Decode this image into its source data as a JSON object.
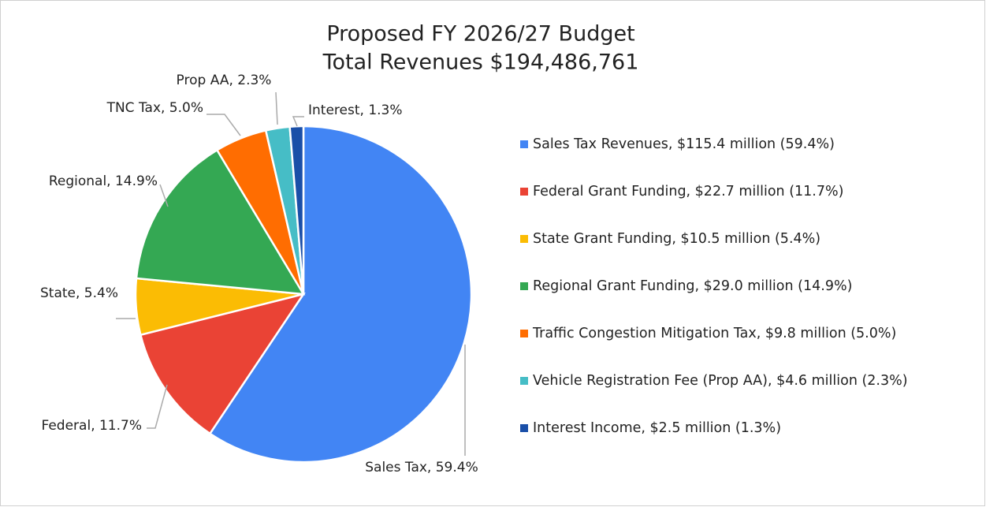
{
  "chart_data": {
    "type": "pie",
    "title": "Proposed FY 2026/27 Budget",
    "subtitle": "Total Revenues $194,486,761",
    "categories": [
      "Sales Tax Revenues, $115.4 million (59.4%)",
      "Federal Grant Funding, $22.7 million (11.7%)",
      "State Grant Funding, $10.5 million (5.4%)",
      "Regional Grant Funding, $29.0 million (14.9%)",
      "Traffic Congestion Mitigation Tax, $9.8 million (5.0%)",
      "Vehicle Registration Fee (Prop AA), $4.6 million (2.3%)",
      "Interest Income, $2.5 million (1.3%)"
    ],
    "values": [
      59.4,
      11.7,
      5.4,
      14.9,
      5.0,
      2.3,
      1.3
    ],
    "value_labels": [
      "Sales Tax, 59.4%",
      "Federal, 11.7%",
      "State, 5.4%",
      "Regional, 14.9%",
      "TNC Tax, 5.0%",
      "Prop AA, 2.3%",
      "Interest, 1.3%"
    ],
    "colors": [
      "#4285f4",
      "#ea4335",
      "#fbbc04",
      "#34a853",
      "#ff6d01",
      "#46bdc6",
      "#1a4fa8"
    ],
    "legend": "right"
  }
}
